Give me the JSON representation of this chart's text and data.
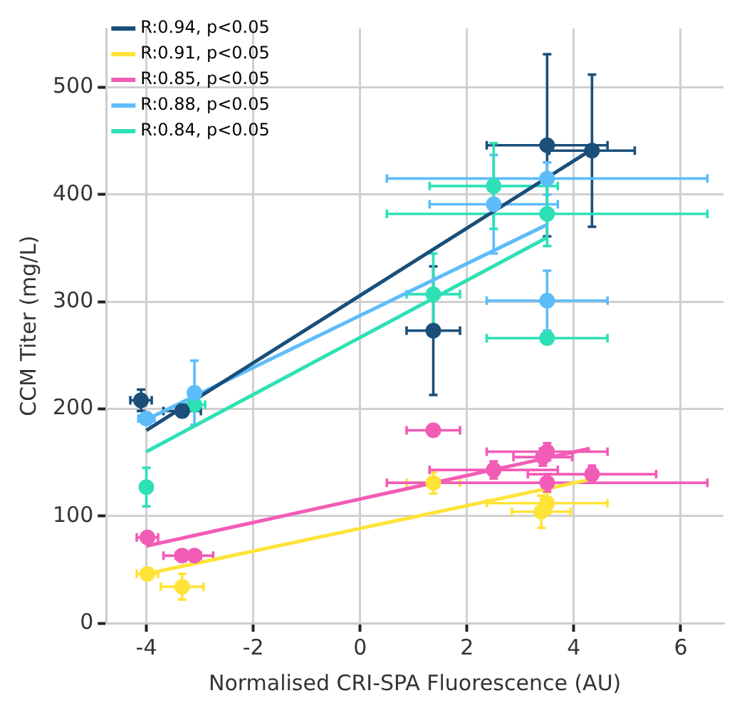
{
  "chart_data": {
    "type": "scatter",
    "xlabel": "Normalised CRI-SPA Fluorescence (AU)",
    "ylabel": "CCM Titer (mg/L)",
    "xlim": [
      -4.75,
      6.8
    ],
    "xticks": [
      -4,
      -2,
      0,
      2,
      4,
      6
    ],
    "ylim": [
      0,
      555
    ],
    "yticks": [
      0,
      100,
      200,
      300,
      400,
      500
    ],
    "grid": true,
    "legend": "top left",
    "marker": "circle",
    "series": [
      {
        "type": "line",
        "name": "R:0.94, p<0.05",
        "color": "#1a4f7a",
        "x": [
          -4,
          4.3
        ],
        "values": [
          180,
          441
        ],
        "marker": "none",
        "line_style": "solid"
      },
      {
        "type": "line",
        "name": "R:0.91, p<0.05",
        "color": "#ffe338",
        "x": [
          -4,
          4.3
        ],
        "values": [
          46,
          134
        ],
        "marker": "none",
        "line_style": "solid"
      },
      {
        "type": "line",
        "name": "R:0.85, p<0.05",
        "color": "#f25cb6",
        "x": [
          -4,
          4.3
        ],
        "values": [
          72,
          163
        ],
        "marker": "none",
        "line_style": "solid"
      },
      {
        "type": "line",
        "name": "R:0.88, p<0.05",
        "color": "#5dbcfa",
        "x": [
          -4,
          3.5
        ],
        "values": [
          190,
          372
        ],
        "marker": "none",
        "line_style": "solid"
      },
      {
        "type": "line",
        "name": "R:0.84, p<0.05",
        "color": "#2ee0b5",
        "x": [
          -4,
          3.5
        ],
        "values": [
          160,
          360
        ],
        "marker": "none",
        "line_style": "solid"
      },
      {
        "type": "scatter",
        "color": "#1a4f7a",
        "x": [
          -4.1,
          -3.33,
          1.37,
          3.5,
          4.34
        ],
        "values": [
          208,
          198,
          273,
          446,
          441
        ],
        "errors": [
          10,
          5,
          60,
          85,
          71
        ],
        "xerrors": [
          0.2,
          0.35,
          0.5,
          1.13,
          0.8
        ]
      },
      {
        "type": "scatter",
        "color": "#ffe338",
        "x": [
          -3.98,
          -3.33,
          1.37,
          3.5,
          3.39
        ],
        "values": [
          46,
          34,
          131,
          112,
          104
        ],
        "errors": [
          5,
          12,
          10,
          10,
          15
        ],
        "xerrors": [
          0.2,
          0.4,
          0.5,
          1.13,
          0.55
        ]
      },
      {
        "type": "scatter",
        "color": "#f25cb6",
        "x": [
          -3.98,
          -3.33,
          -3.1,
          1.37,
          2.5,
          3.5,
          3.42,
          3.5,
          4.34
        ],
        "values": [
          80,
          63,
          63,
          180,
          143,
          160,
          155,
          131,
          139
        ],
        "errors": [
          5,
          5,
          5,
          5,
          8,
          8,
          8,
          8,
          8
        ],
        "xerrors": [
          0.2,
          0.35,
          0.35,
          0.5,
          1.2,
          1.13,
          0.55,
          3.0,
          1.2
        ]
      },
      {
        "type": "scatter",
        "color": "#5dbcfa",
        "x": [
          -4,
          -3.1,
          2.5,
          3.5,
          3.5
        ],
        "values": [
          191,
          215,
          391,
          415,
          301
        ],
        "errors": [
          5,
          30,
          46,
          15,
          28
        ],
        "xerrors": [
          0.15,
          0.1,
          1.2,
          3.0,
          1.13
        ]
      },
      {
        "type": "scatter",
        "color": "#2ee0b5",
        "x": [
          -4,
          -3.1,
          1.37,
          2.5,
          3.5,
          3.5
        ],
        "values": [
          127,
          204,
          307,
          408,
          382,
          266
        ],
        "errors": [
          18,
          5,
          38,
          40,
          30,
          5
        ],
        "xerrors": [
          0.1,
          0.2,
          0.5,
          1.2,
          3.0,
          1.13
        ]
      }
    ]
  }
}
